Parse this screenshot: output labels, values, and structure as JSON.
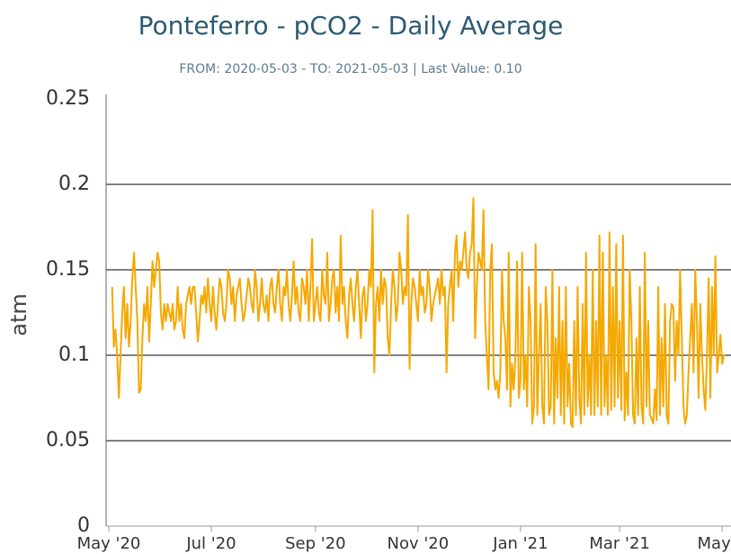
{
  "chart_data": {
    "type": "line",
    "title": "Ponteferro - pCO2 - Daily Average",
    "subtitle": "FROM: 2020-05-03 - TO: 2021-05-03 | Last Value: 0.10",
    "ylabel": "atm",
    "color": "#f5a800",
    "grid": true,
    "ylim": [
      0,
      0.25
    ],
    "yticks": [
      0,
      0.05,
      0.1,
      0.15,
      0.2,
      0.25
    ],
    "xlim": [
      -2,
      364
    ],
    "xticks": [
      {
        "value": -2,
        "label": "May '20"
      },
      {
        "value": 59,
        "label": "Jul '20"
      },
      {
        "value": 121,
        "label": "Sep '20"
      },
      {
        "value": 182,
        "label": "Nov '20"
      },
      {
        "value": 243,
        "label": "Jan '21"
      },
      {
        "value": 302,
        "label": "Mar '21"
      },
      {
        "value": 363,
        "label": "May…"
      }
    ],
    "values": [
      0.14,
      0.105,
      0.115,
      0.1,
      0.075,
      0.1,
      0.125,
      0.14,
      0.11,
      0.13,
      0.105,
      0.12,
      0.145,
      0.16,
      0.14,
      0.12,
      0.078,
      0.08,
      0.11,
      0.13,
      0.12,
      0.14,
      0.108,
      0.13,
      0.155,
      0.14,
      0.15,
      0.16,
      0.155,
      0.125,
      0.115,
      0.13,
      0.12,
      0.13,
      0.125,
      0.12,
      0.13,
      0.115,
      0.12,
      0.14,
      0.12,
      0.13,
      0.115,
      0.11,
      0.13,
      0.135,
      0.14,
      0.13,
      0.14,
      0.14,
      0.125,
      0.108,
      0.12,
      0.135,
      0.13,
      0.14,
      0.125,
      0.145,
      0.13,
      0.12,
      0.14,
      0.125,
      0.115,
      0.13,
      0.145,
      0.14,
      0.125,
      0.12,
      0.13,
      0.15,
      0.145,
      0.13,
      0.14,
      0.12,
      0.135,
      0.14,
      0.145,
      0.13,
      0.12,
      0.125,
      0.135,
      0.145,
      0.14,
      0.13,
      0.125,
      0.15,
      0.14,
      0.12,
      0.13,
      0.145,
      0.13,
      0.125,
      0.135,
      0.12,
      0.14,
      0.145,
      0.13,
      0.125,
      0.14,
      0.15,
      0.13,
      0.12,
      0.14,
      0.135,
      0.15,
      0.13,
      0.12,
      0.135,
      0.155,
      0.13,
      0.14,
      0.125,
      0.12,
      0.145,
      0.14,
      0.13,
      0.15,
      0.12,
      0.14,
      0.168,
      0.12,
      0.13,
      0.14,
      0.125,
      0.12,
      0.15,
      0.135,
      0.13,
      0.16,
      0.12,
      0.13,
      0.145,
      0.15,
      0.125,
      0.14,
      0.12,
      0.17,
      0.13,
      0.14,
      0.12,
      0.11,
      0.135,
      0.145,
      0.13,
      0.12,
      0.14,
      0.15,
      0.13,
      0.11,
      0.135,
      0.14,
      0.12,
      0.13,
      0.15,
      0.14,
      0.185,
      0.09,
      0.13,
      0.14,
      0.12,
      0.15,
      0.13,
      0.145,
      0.14,
      0.11,
      0.1,
      0.13,
      0.15,
      0.14,
      0.12,
      0.13,
      0.16,
      0.15,
      0.13,
      0.14,
      0.135,
      0.182,
      0.092,
      0.13,
      0.145,
      0.14,
      0.13,
      0.12,
      0.15,
      0.135,
      0.14,
      0.125,
      0.13,
      0.15,
      0.14,
      0.12,
      0.13,
      0.135,
      0.14,
      0.145,
      0.13,
      0.15,
      0.135,
      0.14,
      0.09,
      0.13,
      0.14,
      0.15,
      0.12,
      0.16,
      0.17,
      0.14,
      0.155,
      0.15,
      0.16,
      0.172,
      0.15,
      0.145,
      0.16,
      0.165,
      0.192,
      0.11,
      0.14,
      0.16,
      0.155,
      0.15,
      0.185,
      0.12,
      0.1,
      0.08,
      0.15,
      0.165,
      0.09,
      0.08,
      0.085,
      0.075,
      0.09,
      0.15,
      0.12,
      0.11,
      0.08,
      0.16,
      0.07,
      0.095,
      0.08,
      0.1,
      0.155,
      0.075,
      0.085,
      0.16,
      0.08,
      0.1,
      0.07,
      0.14,
      0.12,
      0.06,
      0.07,
      0.165,
      0.065,
      0.1,
      0.13,
      0.07,
      0.06,
      0.14,
      0.12,
      0.065,
      0.07,
      0.15,
      0.06,
      0.11,
      0.075,
      0.14,
      0.065,
      0.12,
      0.06,
      0.14,
      0.07,
      0.095,
      0.06,
      0.058,
      0.12,
      0.065,
      0.14,
      0.075,
      0.06,
      0.13,
      0.065,
      0.16,
      0.07,
      0.1,
      0.065,
      0.15,
      0.065,
      0.12,
      0.07,
      0.17,
      0.065,
      0.16,
      0.07,
      0.1,
      0.065,
      0.172,
      0.068,
      0.14,
      0.07,
      0.165,
      0.075,
      0.12,
      0.068,
      0.17,
      0.062,
      0.09,
      0.065,
      0.15,
      0.12,
      0.065,
      0.06,
      0.11,
      0.065,
      0.14,
      0.07,
      0.06,
      0.16,
      0.07,
      0.12,
      0.065,
      0.063,
      0.06,
      0.08,
      0.062,
      0.14,
      0.065,
      0.11,
      0.07,
      0.13,
      0.065,
      0.06,
      0.12,
      0.13,
      0.128,
      0.085,
      0.12,
      0.1,
      0.15,
      0.11,
      0.07,
      0.06,
      0.065,
      0.09,
      0.11,
      0.13,
      0.09,
      0.15,
      0.12,
      0.075,
      0.13,
      0.1,
      0.08,
      0.068,
      0.1,
      0.145,
      0.075,
      0.14,
      0.1,
      0.158,
      0.09,
      0.1,
      0.112,
      0.095,
      0.1,
      0.1
    ]
  }
}
